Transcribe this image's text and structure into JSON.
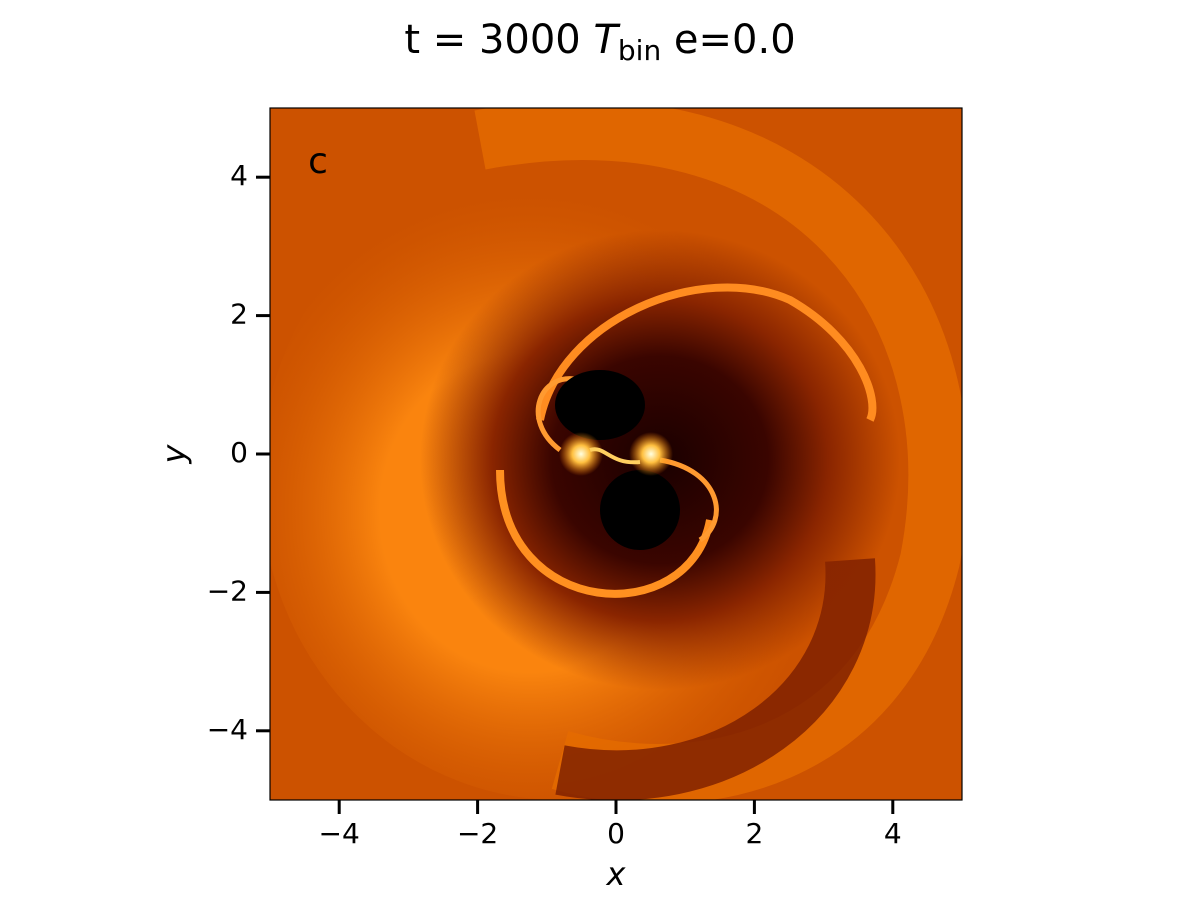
{
  "chart_data": {
    "type": "heatmap",
    "title": {
      "parts": [
        "t = 3000 ",
        "T",
        "bin",
        " e=0.0"
      ]
    },
    "panel_label": "c",
    "x_label": "x",
    "y_label": "y",
    "xlim": [
      -5,
      5
    ],
    "ylim": [
      -5,
      5
    ],
    "xticks": [
      {
        "value": -4,
        "label": "−4"
      },
      {
        "value": -2,
        "label": "−2"
      },
      0,
      2,
      4
    ],
    "yticks": [
      {
        "value": -4,
        "label": "−4"
      },
      {
        "value": -2,
        "label": "−2"
      },
      0,
      2,
      4
    ]
  }
}
